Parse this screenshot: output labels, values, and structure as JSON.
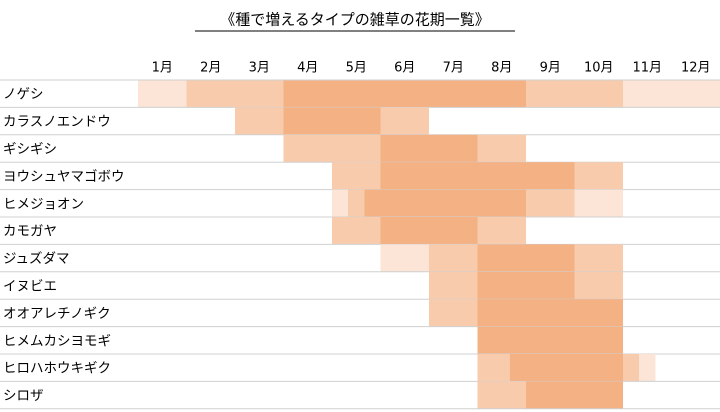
{
  "chart_data": {
    "type": "gantt",
    "title": "《種で増えるタイプの雑草の花期一覧》",
    "categories": [
      "1月",
      "2月",
      "3月",
      "4月",
      "5月",
      "6月",
      "7月",
      "8月",
      "9月",
      "10月",
      "11月",
      "12月"
    ],
    "xlim": [
      0,
      12
    ],
    "level_colors": [
      "#fce4d6",
      "#f8cbad",
      "#f4b183"
    ],
    "rows": [
      {
        "name": "ノゲシ",
        "segments": [
          {
            "start": 0,
            "end": 1,
            "level": 0
          },
          {
            "start": 1,
            "end": 3,
            "level": 1
          },
          {
            "start": 3,
            "end": 8,
            "level": 2
          },
          {
            "start": 8,
            "end": 10,
            "level": 1
          },
          {
            "start": 10,
            "end": 12,
            "level": 0
          }
        ]
      },
      {
        "name": "カラスノエンドウ",
        "segments": [
          {
            "start": 2,
            "end": 3,
            "level": 1
          },
          {
            "start": 3,
            "end": 5,
            "level": 2
          },
          {
            "start": 5,
            "end": 6,
            "level": 1
          }
        ]
      },
      {
        "name": "ギシギシ",
        "segments": [
          {
            "start": 3,
            "end": 5,
            "level": 1
          },
          {
            "start": 5,
            "end": 7,
            "level": 2
          },
          {
            "start": 7,
            "end": 8,
            "level": 1
          }
        ]
      },
      {
        "name": "ヨウシュヤマゴボウ",
        "segments": [
          {
            "start": 4,
            "end": 5,
            "level": 1
          },
          {
            "start": 5,
            "end": 9,
            "level": 2
          },
          {
            "start": 9,
            "end": 10,
            "level": 1
          }
        ]
      },
      {
        "name": "ヒメジョオン",
        "segments": [
          {
            "start": 4,
            "end": 4.33,
            "level": 0
          },
          {
            "start": 4.33,
            "end": 4.67,
            "level": 1
          },
          {
            "start": 4.67,
            "end": 8,
            "level": 2
          },
          {
            "start": 8,
            "end": 9,
            "level": 1
          },
          {
            "start": 9,
            "end": 10,
            "level": 0
          }
        ]
      },
      {
        "name": "カモガヤ",
        "segments": [
          {
            "start": 4,
            "end": 5,
            "level": 1
          },
          {
            "start": 5,
            "end": 7,
            "level": 2
          },
          {
            "start": 7,
            "end": 8,
            "level": 1
          }
        ]
      },
      {
        "name": "ジュズダマ",
        "segments": [
          {
            "start": 5,
            "end": 6,
            "level": 0
          },
          {
            "start": 6,
            "end": 7,
            "level": 1
          },
          {
            "start": 7,
            "end": 9,
            "level": 2
          },
          {
            "start": 9,
            "end": 10,
            "level": 1
          }
        ]
      },
      {
        "name": "イヌビエ",
        "segments": [
          {
            "start": 6,
            "end": 7,
            "level": 1
          },
          {
            "start": 7,
            "end": 9,
            "level": 2
          },
          {
            "start": 9,
            "end": 10,
            "level": 1
          }
        ]
      },
      {
        "name": "オオアレチノギク",
        "segments": [
          {
            "start": 6,
            "end": 7,
            "level": 1
          },
          {
            "start": 7,
            "end": 10,
            "level": 2
          }
        ]
      },
      {
        "name": "ヒメムカシヨモギ",
        "segments": [
          {
            "start": 7,
            "end": 10,
            "level": 2
          }
        ]
      },
      {
        "name": "ヒロハホウキギク",
        "segments": [
          {
            "start": 7,
            "end": 7.67,
            "level": 1
          },
          {
            "start": 7.67,
            "end": 10,
            "level": 2
          },
          {
            "start": 10,
            "end": 10.33,
            "level": 1
          },
          {
            "start": 10.33,
            "end": 10.67,
            "level": 0
          }
        ]
      },
      {
        "name": "シロザ",
        "segments": [
          {
            "start": 7,
            "end": 8,
            "level": 1
          },
          {
            "start": 8,
            "end": 10,
            "level": 2
          }
        ]
      }
    ]
  }
}
